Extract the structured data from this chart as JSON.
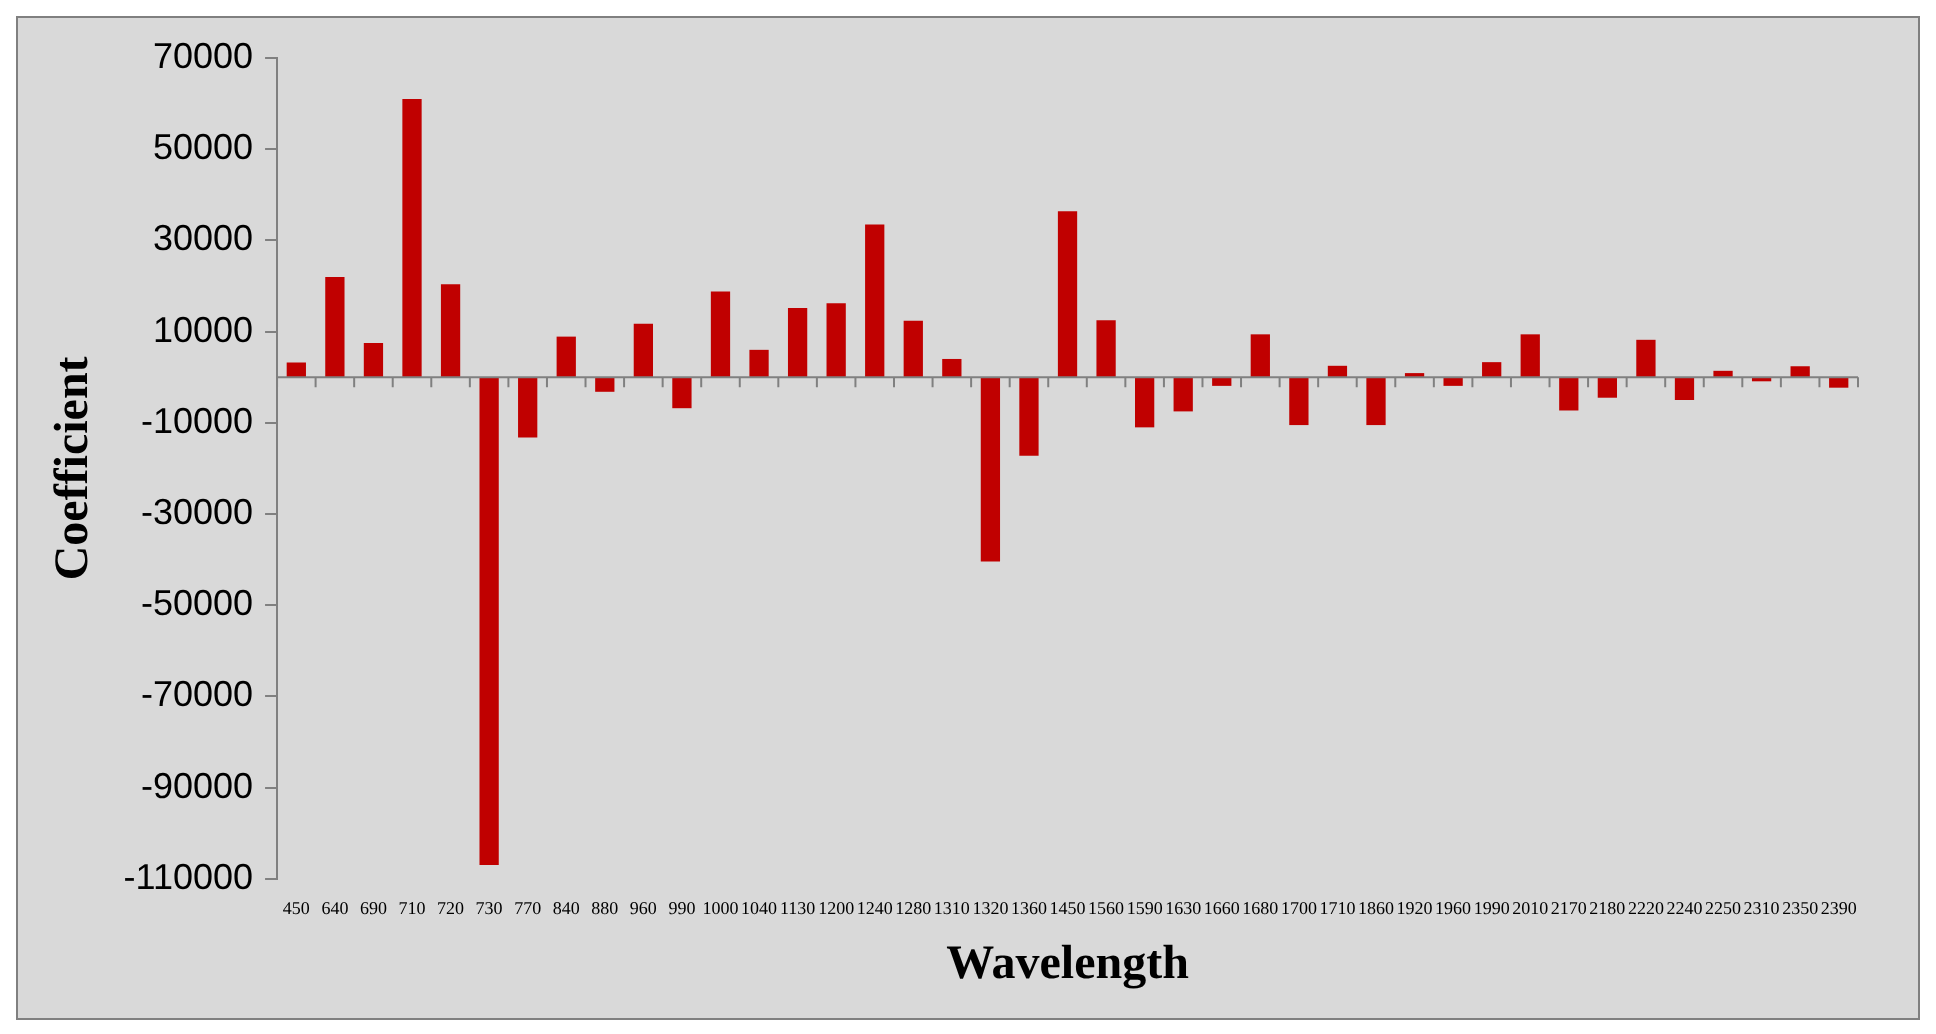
{
  "chart_data": {
    "type": "bar",
    "xlabel": "Wavelength",
    "ylabel": "Coefficient",
    "categories": [
      "450",
      "640",
      "690",
      "710",
      "720",
      "730",
      "770",
      "840",
      "880",
      "960",
      "990",
      "1000",
      "1040",
      "1130",
      "1200",
      "1240",
      "1280",
      "1310",
      "1320",
      "1360",
      "1450",
      "1560",
      "1590",
      "1630",
      "1660",
      "1680",
      "1700",
      "1710",
      "1860",
      "1920",
      "1960",
      "1990",
      "2010",
      "2170",
      "2180",
      "2220",
      "2240",
      "2250",
      "2310",
      "2350",
      "2390"
    ],
    "values": [
      3200,
      22000,
      7500,
      61000,
      20400,
      -107000,
      -13200,
      8900,
      -3200,
      11700,
      -6800,
      18800,
      6000,
      15200,
      16200,
      33500,
      12400,
      4000,
      -40400,
      -17200,
      36400,
      12500,
      -11000,
      -7500,
      -1900,
      9400,
      -10500,
      2500,
      -10500,
      900,
      -1900,
      3300,
      9400,
      -7300,
      -4500,
      8200,
      -5000,
      1400,
      -900,
      2400,
      -2300
    ],
    "color": "#c00000",
    "ylim": [
      -110000,
      70000
    ],
    "yticks": [
      -110000,
      -90000,
      -70000,
      -50000,
      -30000,
      -10000,
      10000,
      30000,
      50000,
      70000
    ],
    "grid": false,
    "legend": false
  }
}
